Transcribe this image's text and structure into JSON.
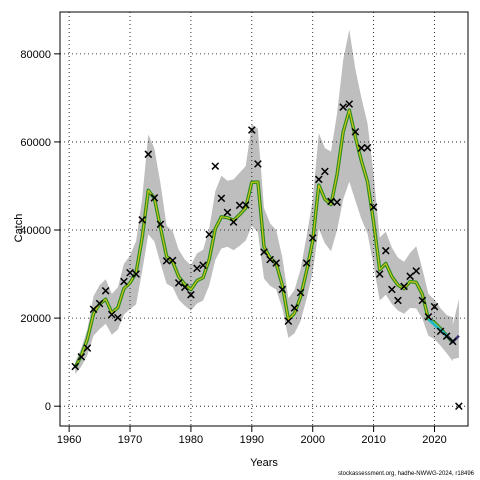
{
  "chart_data": {
    "type": "line",
    "xlabel": "Years",
    "ylabel": "Catch",
    "xlim": [
      1958.5,
      2025.5
    ],
    "ylim": [
      -4500,
      89500
    ],
    "x_ticks": [
      1960,
      1970,
      1980,
      1990,
      2000,
      2010,
      2020
    ],
    "y_ticks": [
      0,
      20000,
      40000,
      60000,
      80000
    ],
    "grid": true,
    "observed": {
      "x": [
        1961,
        1962,
        1963,
        1964,
        1965,
        1966,
        1967,
        1968,
        1969,
        1970,
        1971,
        1972,
        1973,
        1974,
        1975,
        1976,
        1977,
        1978,
        1979,
        1980,
        1981,
        1982,
        1983,
        1984,
        1985,
        1986,
        1987,
        1988,
        1989,
        1990,
        1991,
        1992,
        1993,
        1994,
        1995,
        1996,
        1997,
        1998,
        1999,
        2000,
        2001,
        2002,
        2003,
        2004,
        2005,
        2006,
        2007,
        2008,
        2009,
        2010,
        2011,
        2012,
        2013,
        2014,
        2015,
        2016,
        2017,
        2018,
        2019,
        2020,
        2021,
        2022,
        2023,
        2024
      ],
      "y": [
        9000,
        11200,
        13200,
        22000,
        23300,
        26200,
        20800,
        20100,
        28300,
        30300,
        30000,
        42300,
        57200,
        47300,
        41300,
        33000,
        33100,
        28000,
        27000,
        25300,
        31300,
        32000,
        39000,
        54500,
        47200,
        44000,
        41800,
        45600,
        45700,
        62700,
        55000,
        35000,
        33300,
        32500,
        26500,
        19300,
        22300,
        25800,
        32500,
        38200,
        51500,
        53300,
        46500,
        46300,
        67900,
        68600,
        62300,
        58600,
        58700,
        45200,
        30000,
        35300,
        26500,
        24000,
        27200,
        29500,
        30700,
        24000,
        20300,
        22600,
        17000,
        15900,
        14700,
        0
      ]
    },
    "estimate": {
      "x": [
        1961,
        1962,
        1963,
        1964,
        1965,
        1966,
        1967,
        1968,
        1969,
        1970,
        1971,
        1972,
        1973,
        1974,
        1975,
        1976,
        1977,
        1978,
        1979,
        1980,
        1981,
        1982,
        1983,
        1984,
        1985,
        1986,
        1987,
        1988,
        1989,
        1990,
        1991,
        1992,
        1993,
        1994,
        1995,
        1996,
        1997,
        1998,
        1999,
        2000,
        2001,
        2002,
        2003,
        2004,
        2005,
        2006,
        2007,
        2008,
        2009,
        2010,
        2011,
        2012,
        2013,
        2014,
        2015,
        2016,
        2017,
        2018,
        2019,
        2020,
        2021,
        2022,
        2023
      ],
      "y": [
        8800,
        11500,
        15200,
        21000,
        23200,
        24300,
        21200,
        22400,
        26700,
        28000,
        30300,
        38300,
        49000,
        47200,
        40500,
        34000,
        32800,
        29400,
        27700,
        26500,
        28500,
        29200,
        33300,
        40300,
        43000,
        42800,
        42200,
        43500,
        45000,
        50800,
        50900,
        36200,
        33700,
        32400,
        27500,
        19700,
        21100,
        24800,
        30700,
        37500,
        50200,
        47000,
        45800,
        52600,
        62300,
        67200,
        61200,
        55700,
        51000,
        41800,
        31000,
        32400,
        29400,
        27500,
        26700,
        28300,
        28100,
        25400,
        19800,
        19000,
        17600,
        16000,
        14500
      ],
      "lower": [
        7300,
        9000,
        11600,
        16000,
        17500,
        18700,
        16200,
        17400,
        20800,
        22000,
        23100,
        30700,
        39000,
        37400,
        32400,
        27800,
        27000,
        24200,
        22800,
        21700,
        23300,
        24000,
        27400,
        33200,
        35800,
        36200,
        35400,
        36400,
        37600,
        40900,
        39500,
        29000,
        27300,
        26500,
        22200,
        15500,
        16500,
        19300,
        24400,
        30400,
        40300,
        37000,
        35200,
        40000,
        47000,
        51000,
        46700,
        42500,
        39200,
        32000,
        24000,
        25300,
        23200,
        21700,
        21000,
        22300,
        22200,
        19900,
        16000,
        15200,
        13700,
        12000,
        10200
      ],
      "upper": [
        10000,
        13200,
        17500,
        25000,
        27500,
        28800,
        25500,
        27000,
        32300,
        34200,
        37500,
        47200,
        61700,
        58500,
        50500,
        41000,
        39700,
        35500,
        33300,
        32000,
        34700,
        35500,
        40300,
        48800,
        52300,
        51200,
        51500,
        53000,
        54500,
        64000,
        63000,
        45000,
        41500,
        40000,
        33800,
        24500,
        26300,
        31000,
        38600,
        46800,
        62000,
        58600,
        57800,
        66500,
        78600,
        85500,
        76600,
        70000,
        64200,
        52700,
        38300,
        39600,
        36000,
        33700,
        32800,
        34800,
        36300,
        31200,
        25500,
        24200,
        22200,
        20700,
        20200
      ]
    },
    "forecast": {
      "x": [
        2019,
        2020,
        2021,
        2022,
        2023,
        2024
      ],
      "y": [
        19800,
        18500,
        17200,
        16000,
        14600,
        16000
      ],
      "upper": [
        22000,
        21000,
        19500,
        18500,
        18500,
        24300
      ],
      "lower": [
        17200,
        15500,
        13800,
        12300,
        10700,
        11000
      ]
    },
    "colors": {
      "band": "#bebebe",
      "estimate_line": "#2e8b22",
      "estimate_highlight": "#c8c814",
      "forecast_line": "#22b8c8",
      "forecast_tail": "#3b2e6e",
      "points": "#000000"
    }
  },
  "credit": "stockassessment.org, hadhe-NWWG-2024, r18496"
}
